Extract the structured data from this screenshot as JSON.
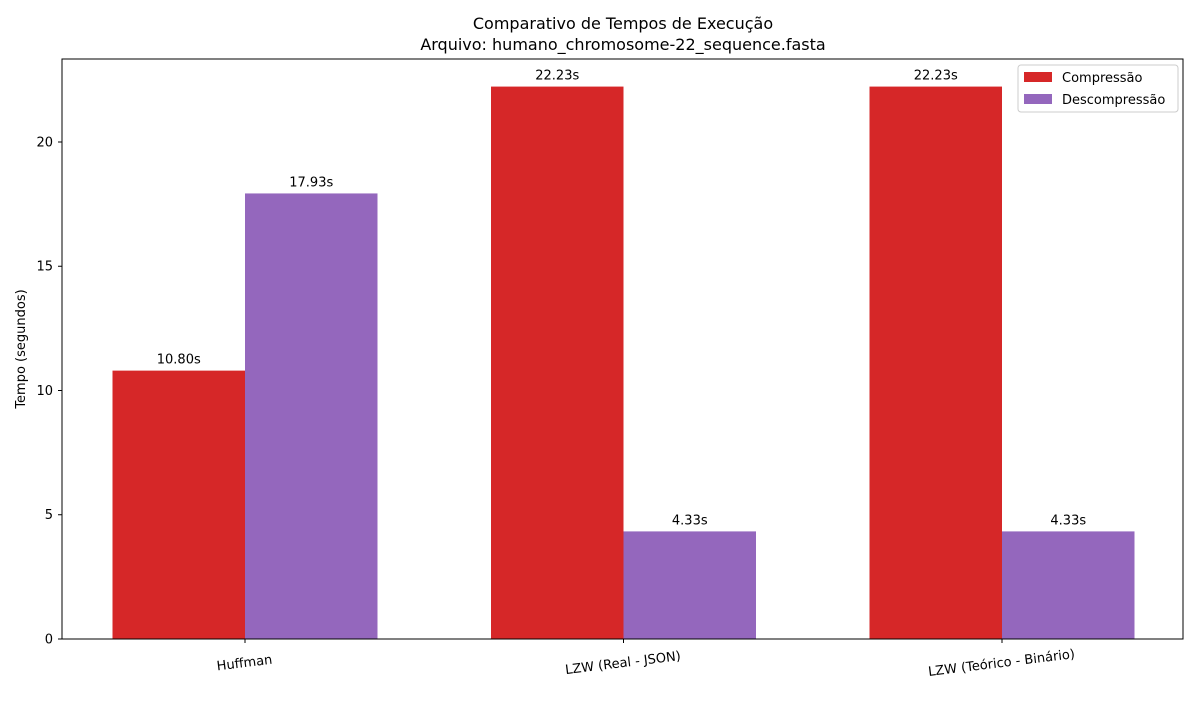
{
  "chart_data": {
    "type": "bar",
    "title": "Comparativo de Tempos de Execução",
    "subtitle": "Arquivo: humano_chromosome-22_sequence.fasta",
    "xlabel": "",
    "ylabel": "Tempo (segundos)",
    "categories": [
      "Huffman",
      "LZW (Real - JSON)",
      "LZW (Teórico - Binário)"
    ],
    "series": [
      {
        "name": "Compressão",
        "values": [
          10.8,
          22.23,
          22.23
        ],
        "labels": [
          "10.80s",
          "22.23s",
          "22.23s"
        ],
        "color": "#d62728"
      },
      {
        "name": "Descompressão",
        "values": [
          17.93,
          4.33,
          4.33
        ],
        "labels": [
          "17.93s",
          "4.33s",
          "4.33s"
        ],
        "color": "#9467bd"
      }
    ],
    "ylim": [
      0,
      23.34
    ],
    "yticks": [
      0,
      5,
      10,
      15,
      20
    ],
    "ytick_labels": [
      "0",
      "5",
      "10",
      "15",
      "20"
    ],
    "x_tick_rotation_deg": -7,
    "grid": false,
    "legend_position": "top-right"
  }
}
